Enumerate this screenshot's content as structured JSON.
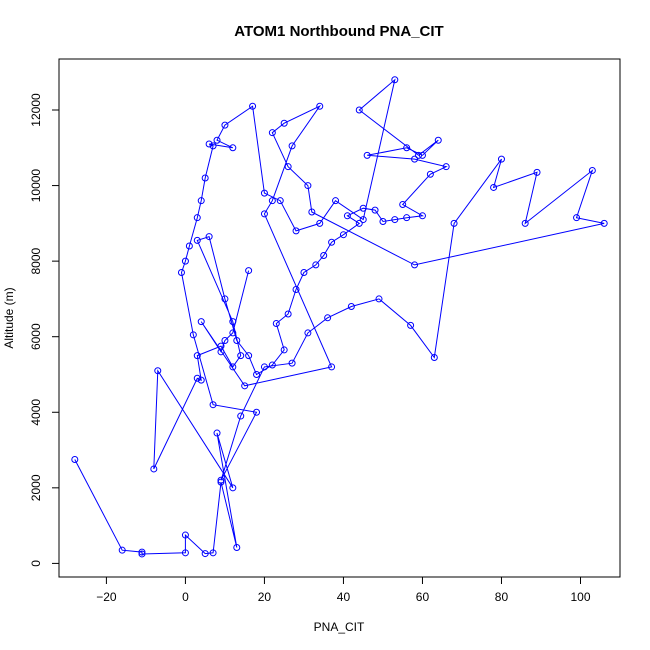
{
  "chart_data": {
    "type": "scatter",
    "title": "ATOM1 Northbound PNA_CIT",
    "xlabel": "PNA_CIT",
    "ylabel": "Altitude (m)",
    "xlim": [
      -32,
      110
    ],
    "ylim": [
      -360,
      13350
    ],
    "xticks": [
      -20,
      0,
      20,
      40,
      60,
      80,
      100
    ],
    "yticks": [
      0,
      2000,
      4000,
      6000,
      8000,
      10000,
      12000
    ],
    "connected": true,
    "marker": "open-circle",
    "color": "#0000ff",
    "grid": false,
    "legend": "none",
    "series": [
      {
        "x": [
          -28,
          -16,
          -11,
          -11,
          0,
          0,
          5,
          7,
          9,
          13,
          8,
          12,
          -7,
          -8,
          3,
          4,
          3,
          9,
          12,
          14,
          12,
          3,
          6,
          10,
          13,
          16,
          18,
          22,
          25,
          23,
          26,
          28,
          30,
          33,
          35,
          37,
          40,
          44,
          41,
          45,
          48,
          50,
          53,
          56,
          60,
          55,
          62,
          66,
          58,
          46,
          56,
          60,
          64,
          59,
          44,
          53,
          45,
          38,
          34,
          28,
          24,
          20,
          17,
          10,
          8,
          12,
          6,
          7,
          5,
          4,
          3,
          1,
          0,
          -1,
          2,
          7,
          18,
          9,
          14,
          20,
          27,
          31,
          36,
          42,
          49,
          57,
          63,
          68,
          80,
          78,
          89,
          86,
          103,
          99,
          106,
          58,
          32,
          31,
          26,
          22,
          25,
          34,
          27,
          22,
          20,
          37,
          15,
          4,
          9,
          10,
          12,
          16
        ],
        "y": [
          2750,
          350,
          300,
          250,
          280,
          750,
          260,
          280,
          2150,
          420,
          3450,
          2000,
          5100,
          2500,
          4900,
          4850,
          5500,
          5750,
          5200,
          5500,
          6400,
          8550,
          8650,
          7000,
          5900,
          5500,
          5000,
          5250,
          5650,
          6350,
          6600,
          7250,
          7700,
          7900,
          8150,
          8500,
          8700,
          9000,
          9200,
          9400,
          9350,
          9050,
          9100,
          9150,
          9200,
          9500,
          10300,
          10500,
          10700,
          10800,
          11000,
          10800,
          11200,
          10800,
          12000,
          12800,
          9100,
          9600,
          9000,
          8800,
          9600,
          9800,
          12100,
          11600,
          11200,
          11000,
          11100,
          11050,
          10200,
          9600,
          9150,
          8400,
          8000,
          7700,
          6050,
          4200,
          4000,
          2200,
          3900,
          5200,
          5300,
          6100,
          6500,
          6800,
          7000,
          6300,
          5450,
          9000,
          10700,
          9950,
          10350,
          9000,
          10400,
          9150,
          9000,
          7900,
          9300,
          10000,
          10500,
          11400,
          11650,
          12100,
          11050,
          9600,
          9250,
          5200,
          4700,
          6400,
          5600,
          5900,
          6100,
          7750
        ]
      }
    ]
  }
}
